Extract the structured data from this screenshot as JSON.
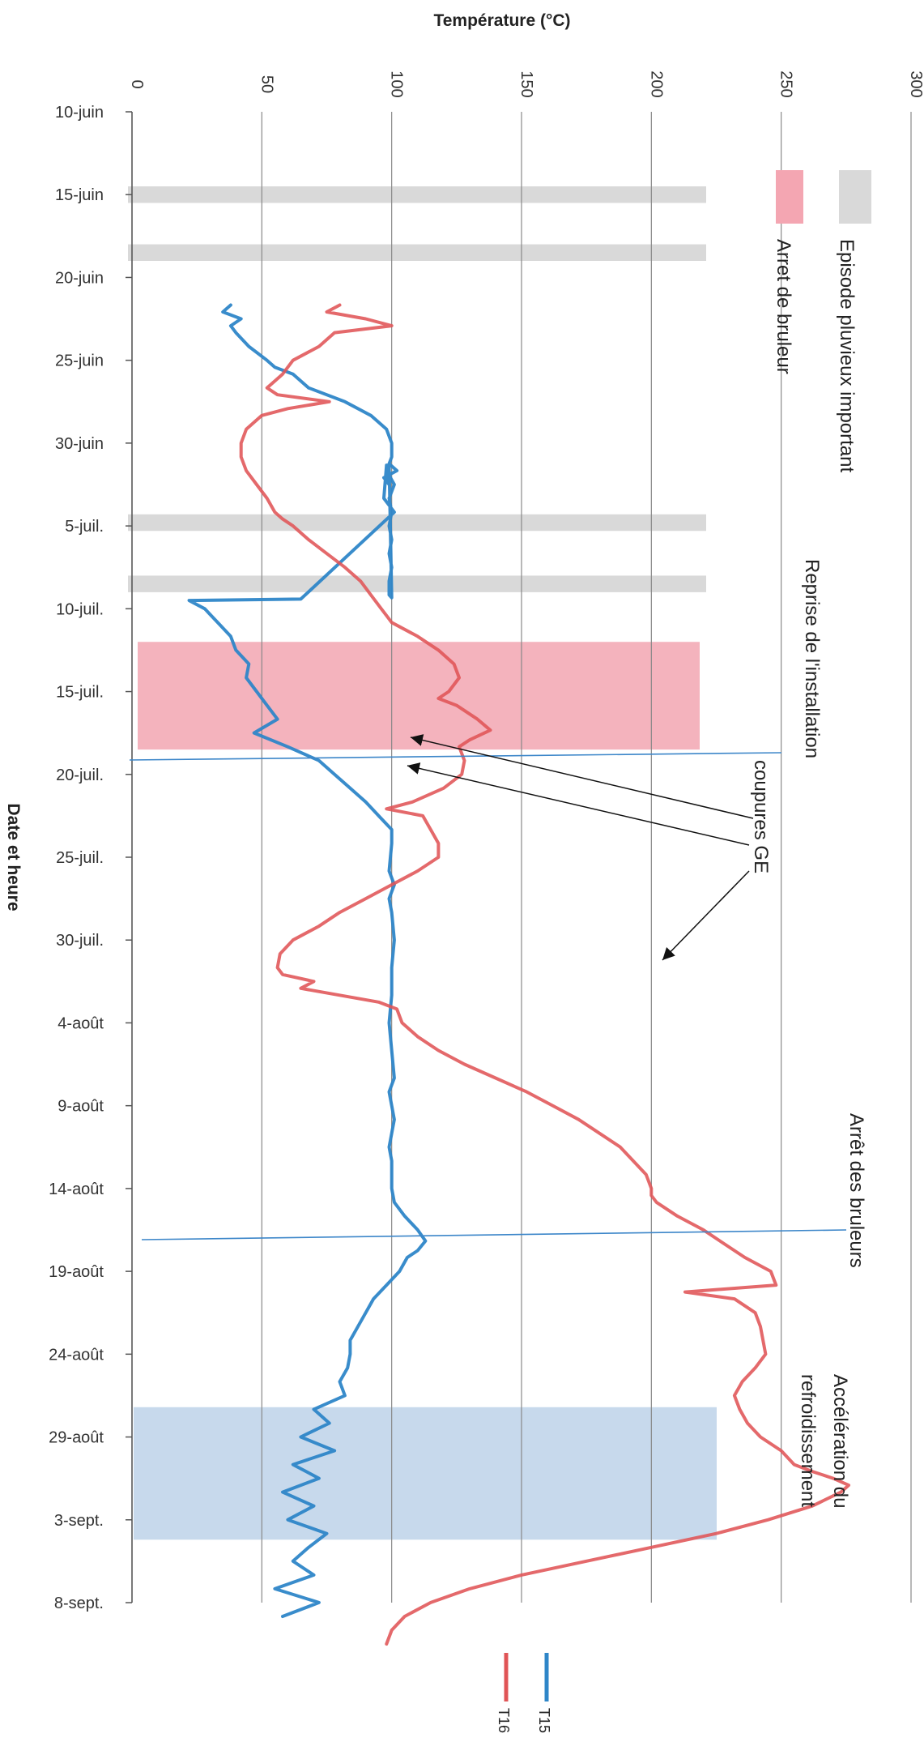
{
  "chart_data": {
    "type": "line",
    "orientation": "rotated-90-clockwise",
    "title": "",
    "ylabel": "Température  (°C)",
    "xlabel": "Date et heure",
    "ylim": [
      0,
      300
    ],
    "y_ticks": [
      0,
      50,
      100,
      150,
      200,
      250,
      300
    ],
    "x_ticks": [
      "10-juin",
      "15-juin",
      "20-juin",
      "25-juin",
      "30-juin",
      "5-juil.",
      "10-juil.",
      "15-juil.",
      "20-juil.",
      "25-juil.",
      "30-juil.",
      "4-août",
      "9-août",
      "14-août",
      "19-août",
      "24-août",
      "29-août",
      "3-sept.",
      "8-sept."
    ],
    "x_range_days": [
      0,
      90
    ],
    "grid": true,
    "legend_position": "bottom",
    "series": [
      {
        "name": "T15",
        "color": "#2e86c8",
        "points": [
          [
            14,
            38
          ],
          [
            14.5,
            35
          ],
          [
            15,
            42
          ],
          [
            15.5,
            38
          ],
          [
            16,
            40
          ],
          [
            17,
            45
          ],
          [
            18,
            52
          ],
          [
            18.5,
            55
          ],
          [
            19,
            62
          ],
          [
            20,
            68
          ],
          [
            21,
            82
          ],
          [
            22,
            92
          ],
          [
            23,
            98
          ],
          [
            24,
            100
          ],
          [
            25,
            100
          ],
          [
            26,
            98
          ],
          [
            27,
            101
          ],
          [
            28,
            99
          ],
          [
            29,
            100
          ],
          [
            30,
            99
          ],
          [
            31,
            100
          ],
          [
            32,
            99
          ],
          [
            33,
            100
          ],
          [
            34,
            99
          ],
          [
            35,
            99
          ],
          [
            35.2,
            100
          ],
          [
            25.5,
            99
          ],
          [
            26,
            102
          ],
          [
            26.5,
            97
          ],
          [
            27,
            99
          ],
          [
            25.6,
            98
          ],
          [
            28,
            97
          ],
          [
            29,
            101
          ],
          [
            35.3,
            65
          ],
          [
            35.4,
            22
          ],
          [
            36,
            28
          ],
          [
            37,
            33
          ],
          [
            38,
            38
          ],
          [
            39,
            40
          ],
          [
            40,
            45
          ],
          [
            41,
            44
          ],
          [
            42,
            48
          ],
          [
            43,
            52
          ],
          [
            44,
            56
          ],
          [
            45,
            47
          ],
          [
            46,
            60
          ],
          [
            47,
            72
          ],
          [
            48,
            78
          ],
          [
            49,
            84
          ],
          [
            50,
            90
          ],
          [
            51,
            95
          ],
          [
            52,
            100
          ],
          [
            53,
            100
          ],
          [
            55,
            99
          ],
          [
            56,
            101
          ],
          [
            57,
            99
          ],
          [
            58,
            100
          ],
          [
            60,
            101
          ],
          [
            62,
            100
          ],
          [
            64,
            100
          ],
          [
            66,
            99
          ],
          [
            68,
            100
          ],
          [
            70,
            101
          ],
          [
            71,
            99
          ],
          [
            72,
            100
          ],
          [
            73,
            101
          ],
          [
            74,
            100
          ],
          [
            75,
            99
          ],
          [
            76,
            100
          ],
          [
            77,
            100
          ],
          [
            78,
            100
          ],
          [
            79,
            101
          ],
          [
            80,
            105
          ],
          [
            81,
            110
          ],
          [
            81.8,
            113
          ],
          [
            82.5,
            110
          ],
          [
            83,
            106
          ],
          [
            84,
            103
          ],
          [
            85,
            98
          ],
          [
            86,
            93
          ],
          [
            87,
            90
          ],
          [
            88,
            87
          ],
          [
            89,
            84
          ],
          [
            90,
            84
          ],
          [
            91,
            83
          ],
          [
            92,
            80
          ],
          [
            93,
            82
          ],
          [
            94,
            70
          ],
          [
            95,
            76
          ],
          [
            96,
            65
          ],
          [
            97,
            78
          ],
          [
            98,
            62
          ],
          [
            99,
            72
          ],
          [
            100,
            58
          ],
          [
            101,
            70
          ],
          [
            102,
            60
          ],
          [
            103,
            75
          ],
          [
            104,
            68
          ],
          [
            105,
            62
          ],
          [
            106,
            70
          ],
          [
            107,
            55
          ],
          [
            108,
            72
          ],
          [
            109,
            58
          ]
        ]
      },
      {
        "name": "T16",
        "color": "#e05456",
        "points": [
          [
            14,
            80
          ],
          [
            14.5,
            75
          ],
          [
            15,
            90
          ],
          [
            15.5,
            100
          ],
          [
            16,
            78
          ],
          [
            17,
            72
          ],
          [
            18,
            62
          ],
          [
            19,
            58
          ],
          [
            19.5,
            55
          ],
          [
            20,
            52
          ],
          [
            20.5,
            56
          ],
          [
            21,
            76
          ],
          [
            21.5,
            60
          ],
          [
            22,
            50
          ],
          [
            23,
            44
          ],
          [
            24,
            42
          ],
          [
            25,
            42
          ],
          [
            26,
            44
          ],
          [
            27,
            48
          ],
          [
            28,
            52
          ],
          [
            29,
            55
          ],
          [
            29.5,
            58
          ],
          [
            30,
            62
          ],
          [
            31,
            68
          ],
          [
            32,
            75
          ],
          [
            33,
            82
          ],
          [
            34,
            88
          ],
          [
            35,
            92
          ],
          [
            36,
            96
          ],
          [
            36.5,
            98
          ],
          [
            37,
            100
          ],
          [
            38,
            110
          ],
          [
            39,
            118
          ],
          [
            40,
            124
          ],
          [
            41,
            126
          ],
          [
            42,
            122
          ],
          [
            42.5,
            118
          ],
          [
            43,
            125
          ],
          [
            44,
            133
          ],
          [
            44.8,
            138
          ],
          [
            45.5,
            130
          ],
          [
            46,
            126
          ],
          [
            47,
            128
          ],
          [
            48,
            127
          ],
          [
            49,
            120
          ],
          [
            50,
            108
          ],
          [
            50.5,
            98
          ],
          [
            51,
            112
          ],
          [
            52,
            115
          ],
          [
            53,
            118
          ],
          [
            54,
            118
          ],
          [
            55,
            110
          ],
          [
            56,
            100
          ],
          [
            57,
            90
          ],
          [
            58,
            80
          ],
          [
            59,
            72
          ],
          [
            60,
            62
          ],
          [
            61,
            57
          ],
          [
            62,
            56
          ],
          [
            62.5,
            58
          ],
          [
            63,
            70
          ],
          [
            63.5,
            65
          ],
          [
            64,
            80
          ],
          [
            64.5,
            95
          ],
          [
            65,
            102
          ],
          [
            66,
            104
          ],
          [
            67,
            110
          ],
          [
            68,
            118
          ],
          [
            69,
            128
          ],
          [
            70,
            140
          ],
          [
            71,
            152
          ],
          [
            72,
            162
          ],
          [
            73,
            172
          ],
          [
            74,
            180
          ],
          [
            75,
            188
          ],
          [
            76,
            193
          ],
          [
            77,
            198
          ],
          [
            78,
            200
          ],
          [
            78.5,
            200
          ],
          [
            79,
            202
          ],
          [
            80,
            210
          ],
          [
            81,
            220
          ],
          [
            82,
            228
          ],
          [
            83,
            236
          ],
          [
            84,
            246
          ],
          [
            85,
            248
          ],
          [
            85.5,
            213
          ],
          [
            86,
            232
          ],
          [
            87,
            240
          ],
          [
            88,
            242
          ],
          [
            89,
            243
          ],
          [
            90,
            244
          ],
          [
            91,
            240
          ],
          [
            92,
            235
          ],
          [
            93,
            232
          ],
          [
            94,
            234
          ],
          [
            95,
            237
          ],
          [
            96,
            242
          ],
          [
            97,
            250
          ],
          [
            98,
            255
          ],
          [
            98.5,
            262
          ],
          [
            99,
            270
          ],
          [
            99.5,
            276
          ],
          [
            100,
            273
          ],
          [
            101,
            262
          ],
          [
            102,
            245
          ],
          [
            103,
            225
          ],
          [
            104,
            200
          ],
          [
            105,
            175
          ],
          [
            106,
            150
          ],
          [
            107,
            130
          ],
          [
            108,
            115
          ],
          [
            109,
            105
          ],
          [
            110,
            100
          ],
          [
            111,
            98
          ]
        ]
      }
    ],
    "annotations": [
      {
        "text": "Episode pluvieux important",
        "color": "#d9d9d9"
      },
      {
        "text": "Arret de bruleur",
        "color": "#f4a6b2"
      },
      {
        "text": "Reprise de l'installation"
      },
      {
        "text": "coupures GE"
      },
      {
        "text": "Arrêt des bruleurs"
      },
      {
        "text": "Accélération du"
      },
      {
        "text": "refroidissement"
      }
    ],
    "bands": [
      {
        "type": "rain",
        "from_day": 4.5,
        "to_day": 5.5,
        "color": "#d9d9d9"
      },
      {
        "type": "rain",
        "from_day": 8,
        "to_day": 9,
        "color": "#d9d9d9"
      },
      {
        "type": "rain",
        "from_day": 24.3,
        "to_day": 25.3,
        "color": "#d9d9d9"
      },
      {
        "type": "rain",
        "from_day": 28,
        "to_day": 29,
        "color": "#d9d9d9"
      },
      {
        "type": "burner-stop",
        "from_day": 32,
        "to_day": 38.5,
        "color": "#f4b3bd"
      },
      {
        "type": "cooling",
        "from_day": 78.2,
        "to_day": 86.2,
        "color": "#c7d9ec"
      }
    ]
  },
  "legend": {
    "items": [
      {
        "name": "T15",
        "color": "#2e86c8"
      },
      {
        "name": "T16",
        "color": "#e05456"
      }
    ]
  }
}
